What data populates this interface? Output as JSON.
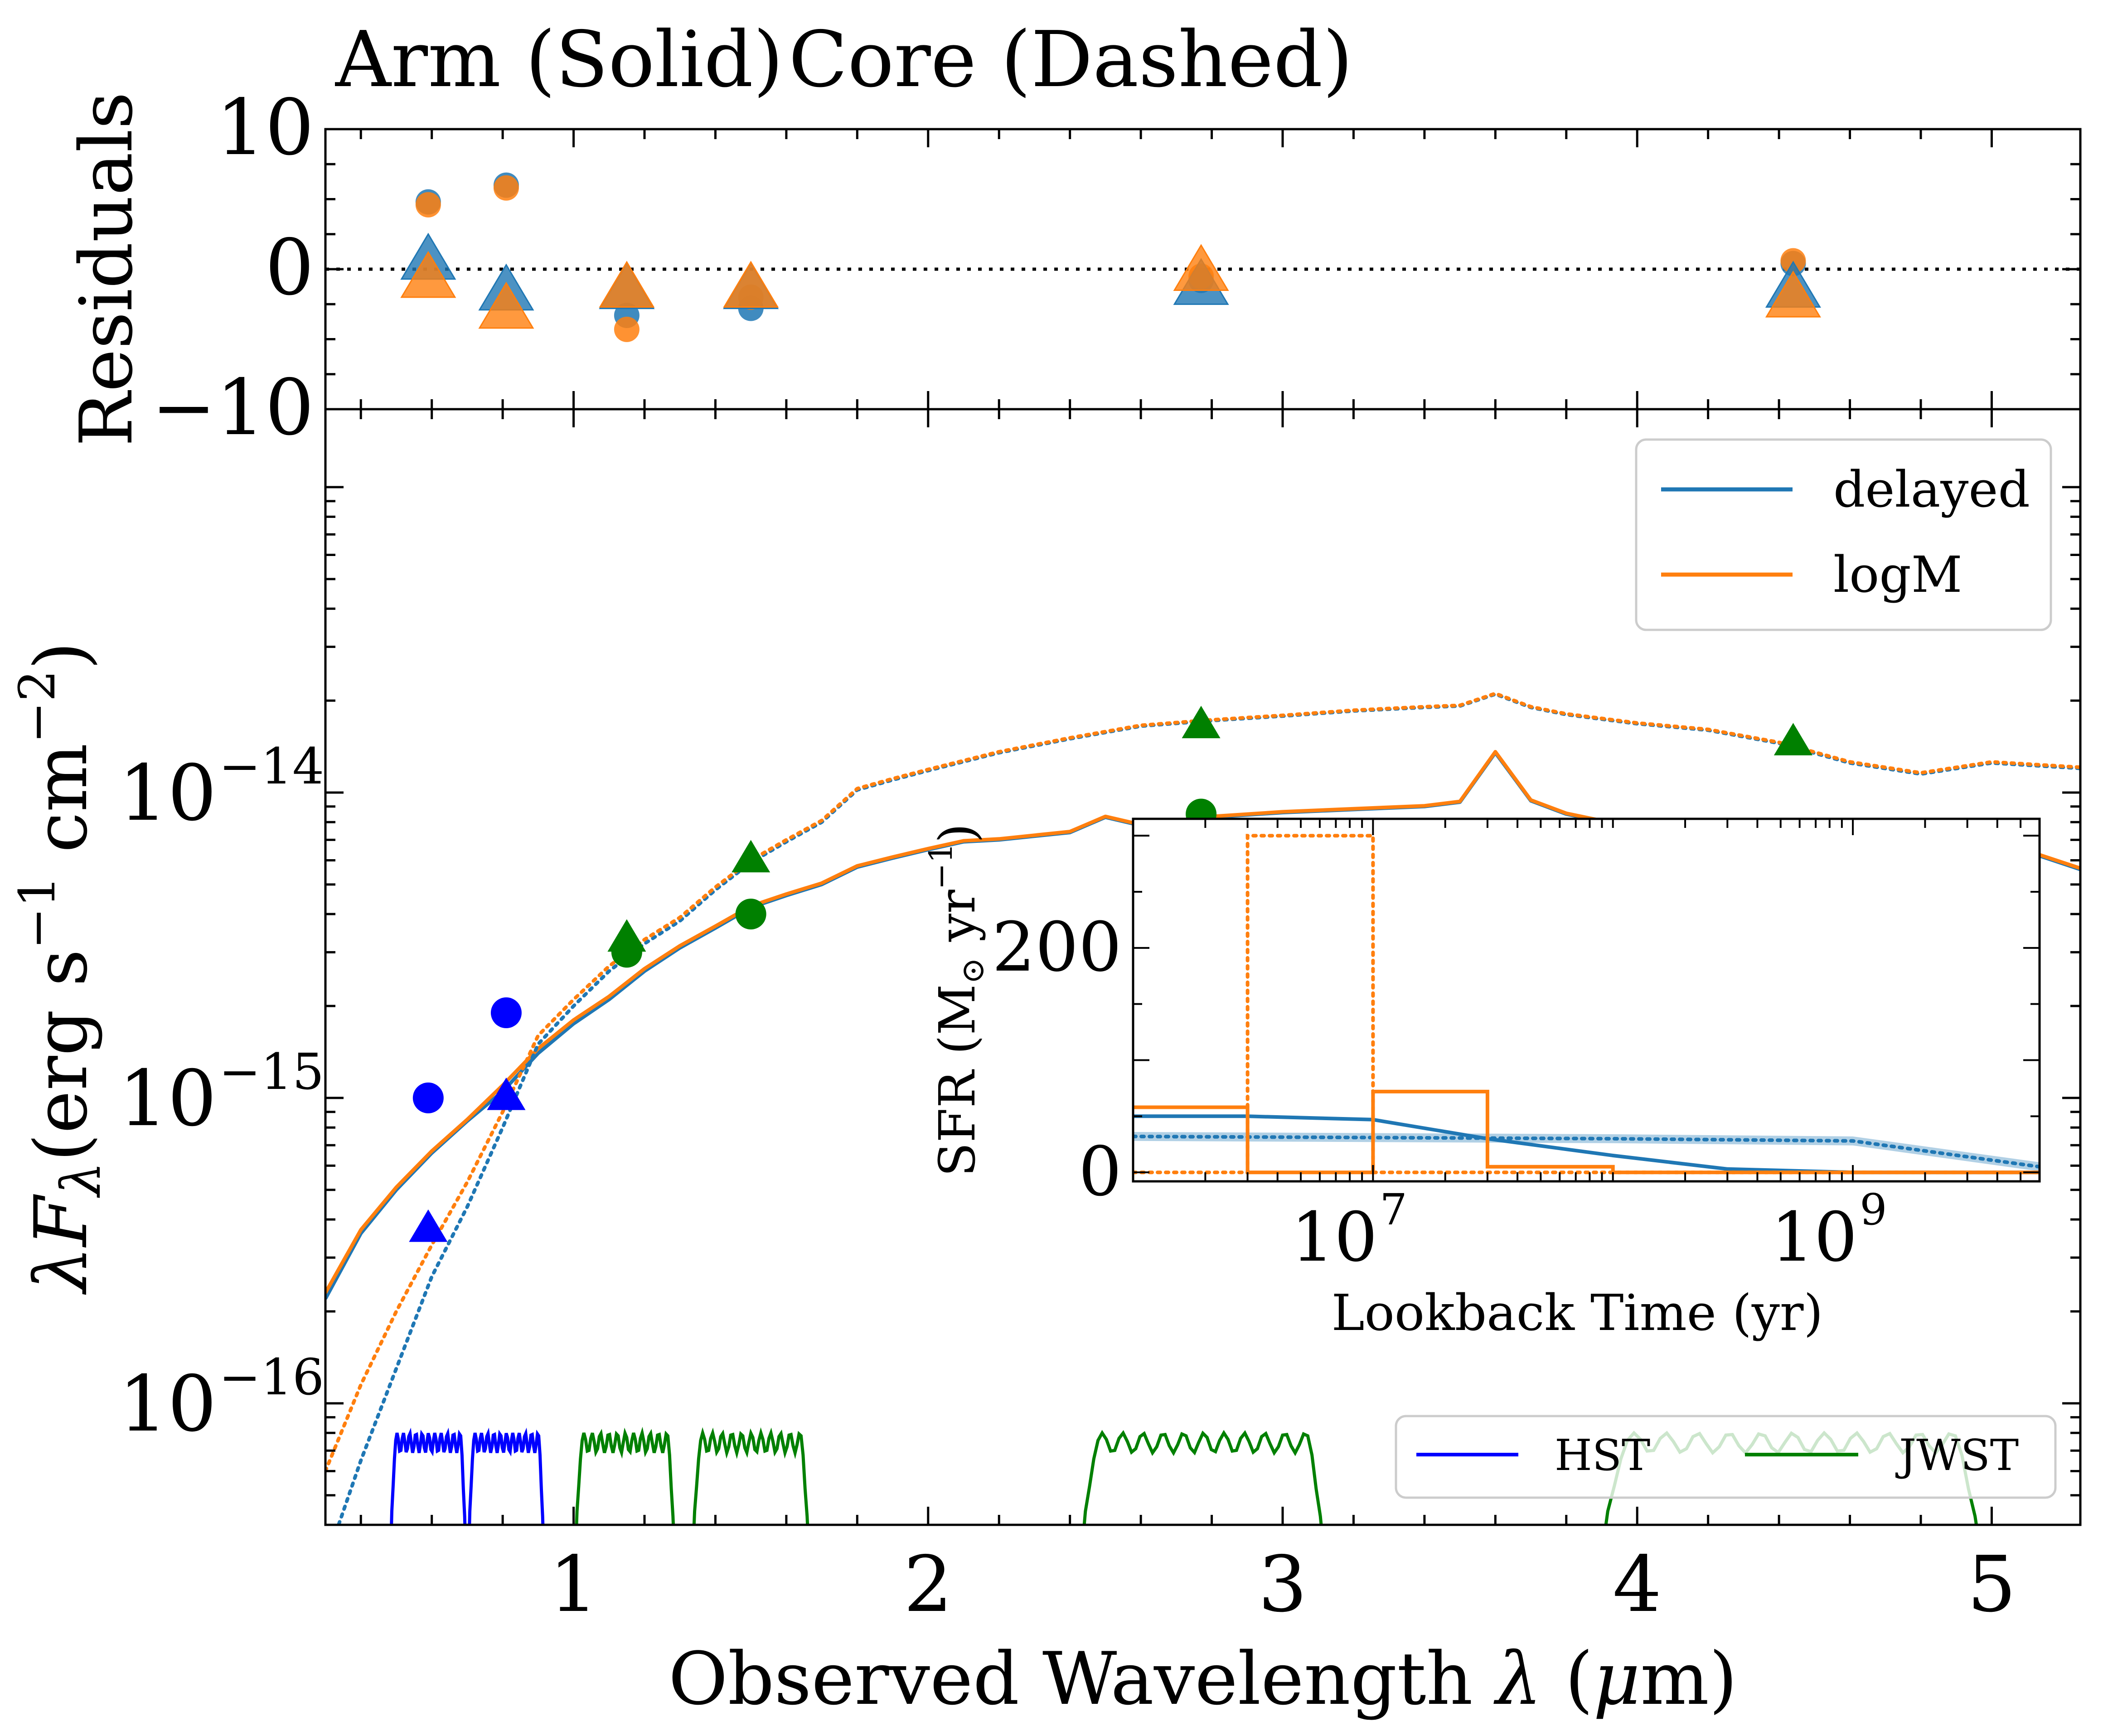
{
  "header": {
    "arm_label": "Arm (Solid)",
    "core_label": "Core (Dashed)",
    "arm_color": "#f08080",
    "core_color": "#800000"
  },
  "colors": {
    "delayed": "#1f77b4",
    "logM": "#ff7f0e",
    "hst": "#0000ff",
    "jwst": "#008000"
  },
  "chart_data": [
    {
      "id": "residuals",
      "type": "scatter",
      "ylabel": "Residuals",
      "ylim": [
        -10,
        10
      ],
      "yticks": [
        10,
        0,
        -10
      ],
      "ytick_labels": [
        "10",
        "0",
        "−10"
      ],
      "xlim": [
        0.3,
        5.25
      ],
      "reference_line": 0,
      "series": [
        {
          "name": "delayed",
          "region": "Arm",
          "marker": "circle",
          "x": [
            0.59,
            0.81,
            1.15,
            1.5,
            2.77,
            4.44
          ],
          "y": [
            4.8,
            6.0,
            -3.3,
            -2.8,
            -0.8,
            0.4
          ]
        },
        {
          "name": "logM",
          "region": "Arm",
          "marker": "circle",
          "x": [
            0.59,
            0.81,
            1.15,
            1.5,
            2.77,
            4.44
          ],
          "y": [
            4.6,
            5.8,
            -4.3,
            -2.0,
            -0.5,
            0.6
          ]
        },
        {
          "name": "delayed",
          "region": "Core",
          "marker": "triangle",
          "x": [
            0.59,
            0.81,
            1.15,
            1.5,
            2.77,
            4.44
          ],
          "y": [
            0.5,
            -1.7,
            -1.6,
            -1.6,
            -1.3,
            -1.5
          ]
        },
        {
          "name": "logM",
          "region": "Core",
          "marker": "triangle",
          "x": [
            0.59,
            0.81,
            1.15,
            1.5,
            2.77,
            4.44
          ],
          "y": [
            -0.8,
            -3.0,
            -1.5,
            -1.5,
            -0.3,
            -2.2
          ]
        }
      ]
    },
    {
      "id": "sed",
      "type": "line",
      "xlabel": "Observed Wavelength λ (μm)",
      "ylabel": "λFλ(erg s⁻¹ cm⁻²)",
      "xlim": [
        0.3,
        5.25
      ],
      "xticks": [
        1,
        2,
        3,
        4,
        5
      ],
      "xtick_labels": [
        "1",
        "2",
        "3",
        "4",
        "5"
      ],
      "ylog": true,
      "ylim": [
        4e-17,
        1.8e-13
      ],
      "yticks": [
        1e-14,
        1e-15,
        1e-16
      ],
      "ytick_labels": [
        {
          "base": "10",
          "exp": "−14"
        },
        {
          "base": "10",
          "exp": "−15"
        },
        {
          "base": "10",
          "exp": "−16"
        }
      ],
      "legend": {
        "placement": "top-right",
        "entries": [
          "delayed",
          "logM"
        ]
      },
      "filter_legend": {
        "placement": "bottom-right",
        "entries": [
          "HST",
          "JWST"
        ]
      },
      "series": [
        {
          "name": "delayed",
          "region": "Arm",
          "style": "solid",
          "x": [
            0.3,
            0.4,
            0.5,
            0.6,
            0.7,
            0.8,
            0.9,
            1.0,
            1.1,
            1.2,
            1.3,
            1.4,
            1.5,
            1.6,
            1.7,
            1.8,
            1.9,
            2.0,
            2.1,
            2.2,
            2.4,
            2.5,
            2.6,
            2.8,
            3.0,
            3.2,
            3.4,
            3.5,
            3.6,
            3.7,
            3.8,
            4.0,
            4.2,
            4.4,
            4.6,
            4.8,
            4.9,
            5.0,
            5.1,
            5.25
          ],
          "y": [
            2.2e-16,
            3.6e-16,
            5e-16,
            6.6e-16,
            8.4e-16,
            1.05e-15,
            1.4e-15,
            1.75e-15,
            2.1e-15,
            2.6e-15,
            3.1e-15,
            3.6e-15,
            4.2e-15,
            4.6e-15,
            5e-15,
            5.7e-15,
            6.1e-15,
            6.5e-15,
            6.9e-15,
            7e-15,
            7.4e-15,
            8.3e-15,
            7.8e-15,
            8.3e-15,
            8.6e-15,
            8.8e-15,
            9e-15,
            9.3e-15,
            1.35e-14,
            9.4e-15,
            8.5e-15,
            7.6e-15,
            7.2e-15,
            6.9e-15,
            6.2e-15,
            5.3e-15,
            5.6e-15,
            6e-15,
            6.4e-15,
            5.6e-15
          ]
        },
        {
          "name": "logM",
          "region": "Arm",
          "style": "solid",
          "x": [
            0.3,
            0.4,
            0.5,
            0.6,
            0.7,
            0.8,
            0.9,
            1.0,
            1.1,
            1.2,
            1.3,
            1.4,
            1.5,
            1.6,
            1.7,
            1.8,
            1.9,
            2.0,
            2.1,
            2.2,
            2.4,
            2.5,
            2.6,
            2.8,
            3.0,
            3.2,
            3.4,
            3.5,
            3.6,
            3.7,
            3.8,
            4.0,
            4.2,
            4.4,
            4.6,
            4.8,
            4.9,
            5.0,
            5.1,
            5.25
          ],
          "y": [
            2.3e-16,
            3.7e-16,
            5.1e-16,
            6.7e-16,
            8.5e-16,
            1.1e-15,
            1.45e-15,
            1.8e-15,
            2.15e-15,
            2.65e-15,
            3.15e-15,
            3.65e-15,
            4.25e-15,
            4.65e-15,
            5.05e-15,
            5.75e-15,
            6.15e-15,
            6.55e-15,
            6.95e-15,
            7.05e-15,
            7.45e-15,
            8.35e-15,
            7.85e-15,
            8.35e-15,
            8.65e-15,
            8.85e-15,
            9.05e-15,
            9.35e-15,
            1.36e-14,
            9.45e-15,
            8.55e-15,
            7.65e-15,
            7.25e-15,
            6.95e-15,
            6.25e-15,
            5.35e-15,
            5.65e-15,
            6.05e-15,
            6.45e-15,
            5.65e-15
          ]
        },
        {
          "name": "delayed",
          "region": "Core",
          "style": "dotted",
          "x": [
            0.3,
            0.4,
            0.5,
            0.6,
            0.7,
            0.8,
            0.9,
            1.0,
            1.1,
            1.2,
            1.3,
            1.4,
            1.5,
            1.6,
            1.7,
            1.8,
            1.9,
            2.0,
            2.2,
            2.4,
            2.6,
            2.8,
            3.0,
            3.2,
            3.4,
            3.5,
            3.6,
            3.7,
            3.8,
            4.0,
            4.2,
            4.4,
            4.6,
            4.8,
            5.0,
            5.25
          ],
          "y": [
            3e-17,
            6.5e-17,
            1.3e-16,
            2.6e-16,
            4.4e-16,
            8e-16,
            1.5e-15,
            2e-15,
            2.6e-15,
            3.2e-15,
            3.8e-15,
            4.8e-15,
            5.9e-15,
            6.9e-15,
            8e-15,
            1.02e-14,
            1.1e-14,
            1.18e-14,
            1.35e-14,
            1.5e-14,
            1.65e-14,
            1.72e-14,
            1.78e-14,
            1.85e-14,
            1.9e-14,
            1.92e-14,
            2.1e-14,
            1.9e-14,
            1.8e-14,
            1.68e-14,
            1.6e-14,
            1.45e-14,
            1.25e-14,
            1.15e-14,
            1.25e-14,
            1.2e-14
          ]
        },
        {
          "name": "logM",
          "region": "Core",
          "style": "dotted",
          "x": [
            0.3,
            0.4,
            0.5,
            0.6,
            0.7,
            0.8,
            0.9,
            1.0,
            1.1,
            1.2,
            1.3,
            1.4,
            1.5,
            1.6,
            1.7,
            1.8,
            1.9,
            2.0,
            2.2,
            2.4,
            2.6,
            2.8,
            3.0,
            3.2,
            3.4,
            3.5,
            3.6,
            3.7,
            3.8,
            4.0,
            4.2,
            4.4,
            4.6,
            4.8,
            5.0,
            5.25
          ],
          "y": [
            6e-17,
            1.15e-16,
            2e-16,
            3.3e-16,
            5.3e-16,
            9e-16,
            1.6e-15,
            2.1e-15,
            2.7e-15,
            3.3e-15,
            3.9e-15,
            4.9e-15,
            6e-15,
            7e-15,
            8.1e-15,
            1.03e-14,
            1.11e-14,
            1.19e-14,
            1.36e-14,
            1.51e-14,
            1.66e-14,
            1.73e-14,
            1.79e-14,
            1.86e-14,
            1.91e-14,
            1.93e-14,
            2.11e-14,
            1.91e-14,
            1.81e-14,
            1.69e-14,
            1.61e-14,
            1.46e-14,
            1.26e-14,
            1.16e-14,
            1.26e-14,
            1.21e-14
          ]
        }
      ],
      "photometry": [
        {
          "instrument": "HST",
          "region": "Arm",
          "marker": "circle",
          "x": [
            0.59,
            0.81
          ],
          "y": [
            1e-15,
            1.9e-15
          ]
        },
        {
          "instrument": "HST",
          "region": "Core",
          "marker": "triangle",
          "x": [
            0.59,
            0.81
          ],
          "y": [
            3.7e-16,
            1e-15
          ]
        },
        {
          "instrument": "JWST",
          "region": "Arm",
          "marker": "circle",
          "x": [
            1.15,
            1.5,
            2.77,
            4.44
          ],
          "y": [
            3e-15,
            4e-15,
            8.5e-15,
            6.8e-15
          ]
        },
        {
          "instrument": "JWST",
          "region": "Core",
          "marker": "triangle",
          "x": [
            1.15,
            1.5,
            2.77,
            4.44
          ],
          "y": [
            3.3e-15,
            6e-15,
            1.65e-14,
            1.45e-14
          ]
        }
      ],
      "filters": [
        {
          "instrument": "HST",
          "band_x": [
            0.48,
            0.7
          ],
          "peak": 8e-17
        },
        {
          "instrument": "HST",
          "band_x": [
            0.7,
            0.92
          ],
          "peak": 8e-17
        },
        {
          "instrument": "JWST",
          "band_x": [
            1.0,
            1.29
          ],
          "peak": 8e-17
        },
        {
          "instrument": "JWST",
          "band_x": [
            1.33,
            1.67
          ],
          "peak": 8e-17
        },
        {
          "instrument": "JWST",
          "band_x": [
            2.42,
            3.13
          ],
          "peak": 8e-17
        },
        {
          "instrument": "JWST",
          "band_x": [
            3.88,
            4.99
          ],
          "peak": 8e-17
        }
      ]
    },
    {
      "id": "sfh_inset",
      "type": "line",
      "xlabel": "Lookback Time (yr)",
      "ylabel": "SFR (M⊙ yr⁻¹)",
      "xlog": true,
      "xlim": [
        1000000.0,
        6000000000.0
      ],
      "xticks": [
        10000000.0,
        1000000000.0
      ],
      "xtick_labels": [
        {
          "base": "10",
          "exp": "7"
        },
        {
          "base": "10",
          "exp": "9"
        }
      ],
      "ylim": [
        -8,
        315
      ],
      "yticks": [
        0,
        200
      ],
      "ytick_labels": [
        "0",
        "200"
      ],
      "series": [
        {
          "name": "delayed",
          "region": "Arm",
          "style": "solid",
          "x": [
            1000000.0,
            3000000.0,
            10000000.0,
            30000000.0,
            100000000.0,
            300000000.0,
            1000000000.0,
            6000000000.0
          ],
          "y": [
            50,
            50,
            47,
            30,
            15,
            3,
            0,
            0
          ]
        },
        {
          "name": "delayed",
          "region": "Core",
          "style": "dotted",
          "x": [
            1000000.0,
            100000000.0,
            1000000000.0,
            6000000000.0
          ],
          "y": [
            32,
            30,
            28,
            5
          ]
        },
        {
          "name": "logM",
          "region": "Arm",
          "style": "solid",
          "step": true,
          "x": [
            1000000.0,
            3000000.0,
            3000000.0,
            10000000.0,
            10000000.0,
            30000000.0,
            30000000.0,
            100000000.0,
            100000000.0,
            6000000000.0
          ],
          "y": [
            58,
            58,
            0,
            0,
            72,
            72,
            5,
            5,
            0,
            0
          ]
        },
        {
          "name": "logM",
          "region": "Core",
          "style": "dotted",
          "step": true,
          "x": [
            1000000.0,
            3000000.0,
            3000000.0,
            10000000.0,
            10000000.0,
            30000000.0,
            30000000.0,
            6000000000.0
          ],
          "y": [
            0,
            0,
            300,
            300,
            0,
            0,
            0,
            0
          ]
        }
      ]
    }
  ]
}
